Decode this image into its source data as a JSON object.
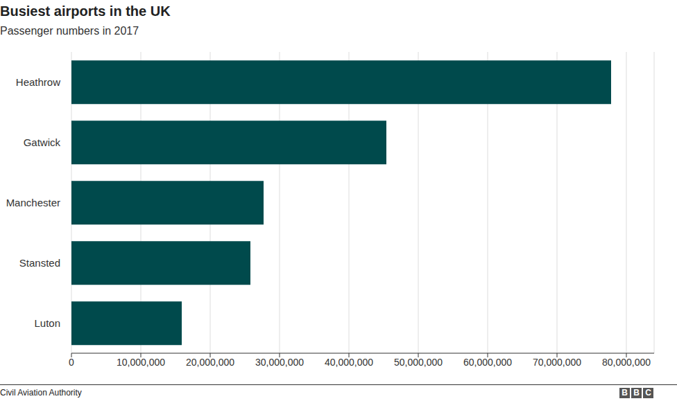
{
  "chart_data": {
    "type": "bar",
    "title": "Busiest airports in the UK",
    "subtitle": "Passenger numbers in 2017",
    "source": "Civil Aviation Authority",
    "logo": "BBC",
    "orientation": "horizontal",
    "categories": [
      "Heathrow",
      "Gatwick",
      "Manchester",
      "Stansted",
      "Luton"
    ],
    "values": [
      77800000,
      45400000,
      27700000,
      25800000,
      15900000
    ],
    "color": "#004a4c",
    "xlim": [
      0,
      84000000
    ],
    "xticks": [
      0,
      {
        "value": 10000000,
        "label": "10,000,000"
      },
      {
        "value": 20000000,
        "label": "20,000,000"
      },
      {
        "value": 30000000,
        "label": "30,000,000"
      },
      {
        "value": 40000000,
        "label": "40,000,000"
      },
      {
        "value": 50000000,
        "label": "50,000,000"
      },
      {
        "value": 60000000,
        "label": "60,000,000"
      },
      {
        "value": 70000000,
        "label": "70,000,000"
      },
      {
        "value": 80000000,
        "label": "80,000,000"
      }
    ],
    "grid": true
  }
}
